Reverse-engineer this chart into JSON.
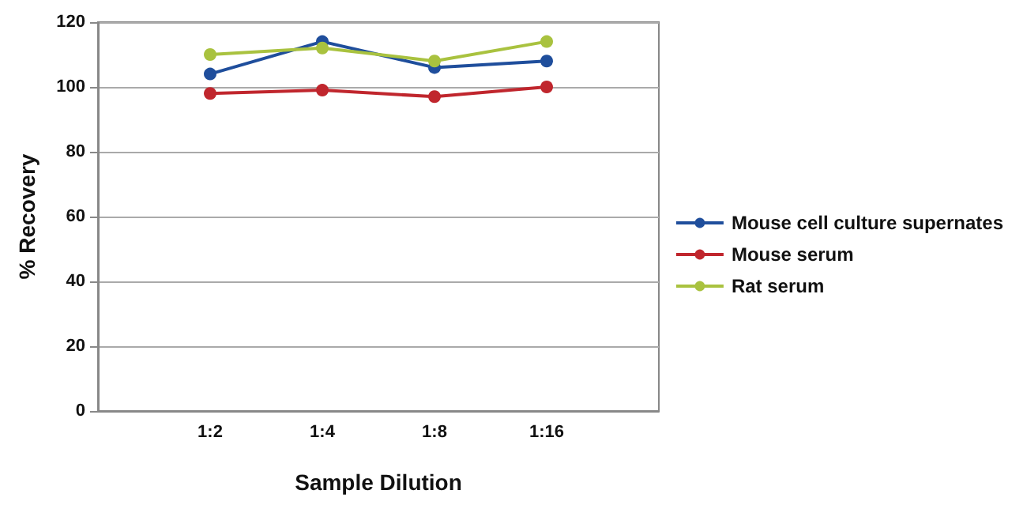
{
  "chart_data": {
    "type": "line",
    "xlabel": "Sample Dilution",
    "ylabel": "% Recovery",
    "categories": [
      "1:2",
      "1:4",
      "1:8",
      "1:16"
    ],
    "series": [
      {
        "name": "Mouse cell culture supernates",
        "color": "#1f4e9c",
        "values": [
          104,
          114,
          106,
          108
        ]
      },
      {
        "name": "Mouse serum",
        "color": "#c0262d",
        "values": [
          98,
          99,
          97,
          100
        ]
      },
      {
        "name": "Rat serum",
        "color": "#a9c23f",
        "values": [
          110,
          112,
          108,
          114
        ]
      }
    ],
    "ylim": [
      0,
      120
    ],
    "yticks": [
      0,
      20,
      40,
      60,
      80,
      100,
      120
    ],
    "grid": "y",
    "legend": "right",
    "marker": "circle",
    "line_style": "solid"
  }
}
